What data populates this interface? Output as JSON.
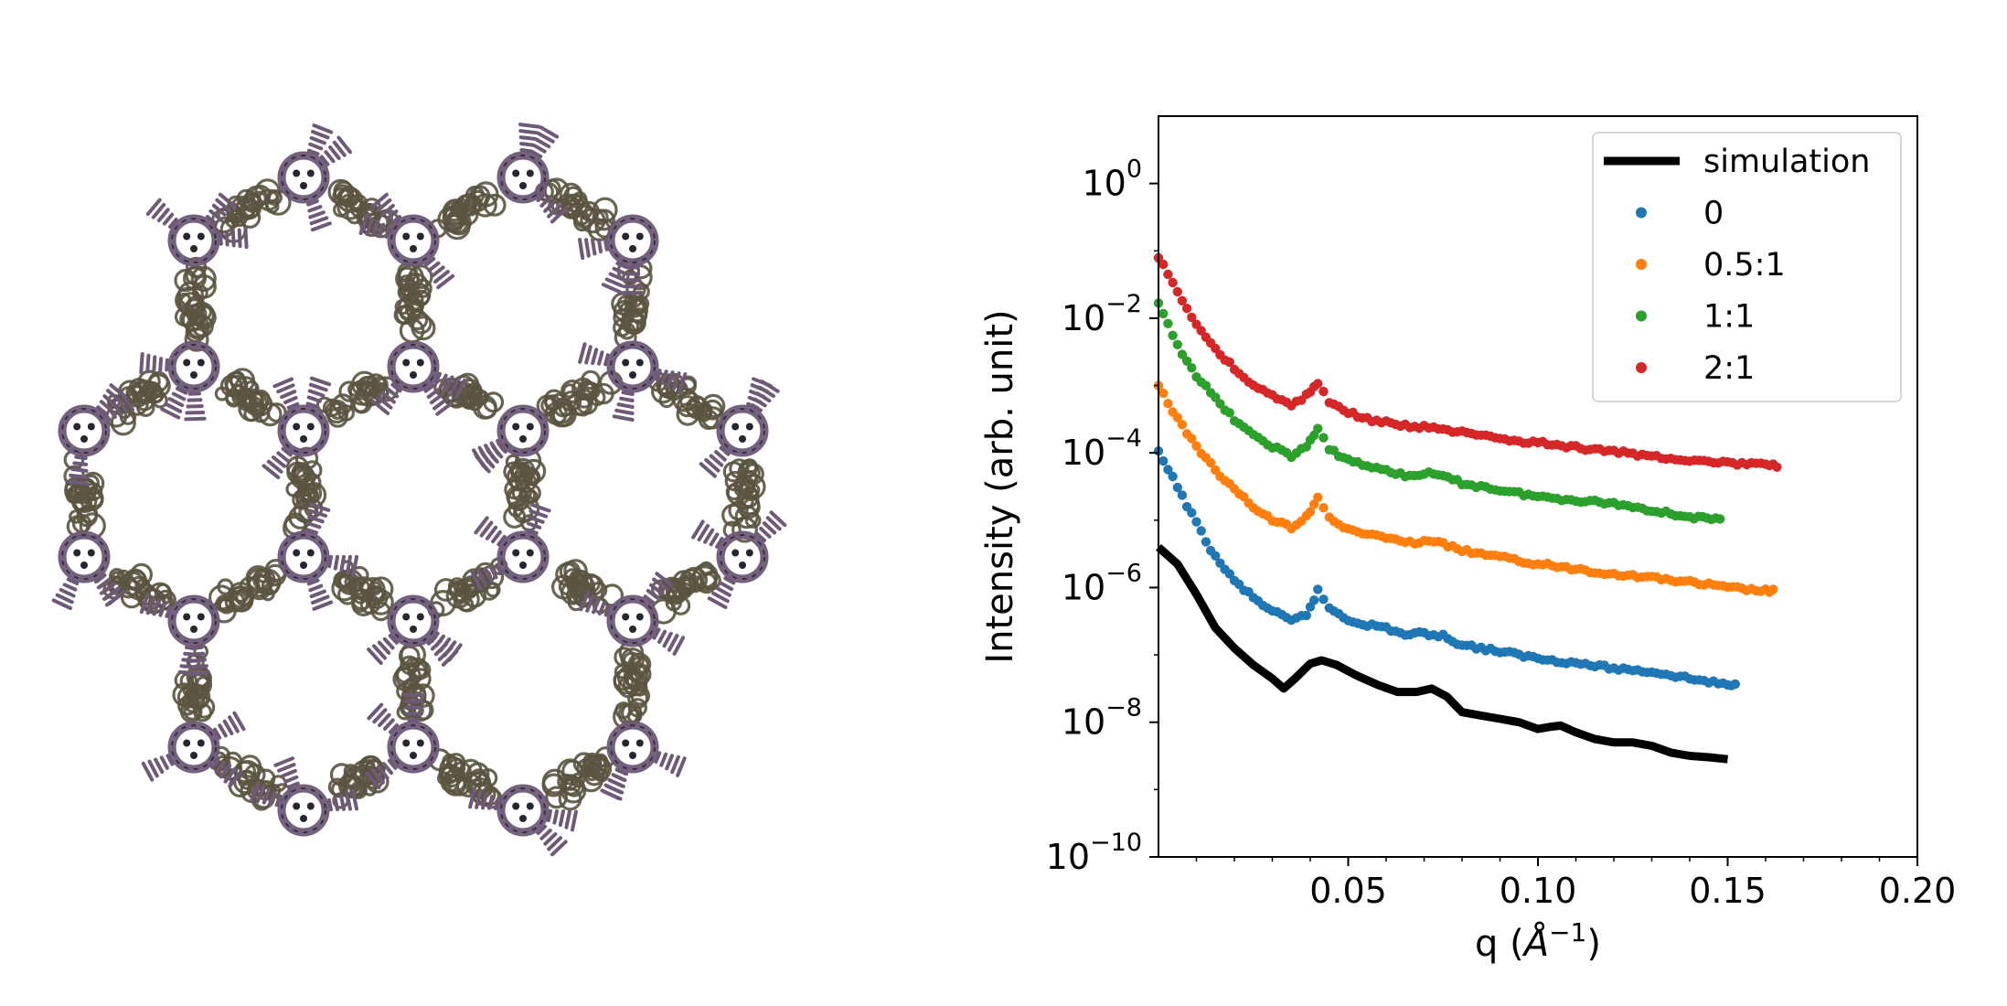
{
  "chart_data": {
    "type": "scatter",
    "xlabel_main": "q (",
    "xlabel_unit": "Å",
    "xlabel_sup": "−1",
    "xlabel_close": ")",
    "ylabel": "Intensity (arb. unit)",
    "xscale": "linear",
    "yscale": "log",
    "xlim": [
      0.0,
      0.2
    ],
    "ylim": [
      1e-10,
      10.0
    ],
    "grid": false,
    "legend_position": "top-right",
    "x_ticks": [
      {
        "value": 0.05,
        "label": "0.05"
      },
      {
        "value": 0.1,
        "label": "0.10"
      },
      {
        "value": 0.15,
        "label": "0.15"
      },
      {
        "value": 0.2,
        "label": "0.20"
      }
    ],
    "y_ticks": [
      {
        "exp": 0,
        "base": "10",
        "sup": "0"
      },
      {
        "exp": -2,
        "base": "10",
        "sup": "−2"
      },
      {
        "exp": -4,
        "base": "10",
        "sup": "−4"
      },
      {
        "exp": -6,
        "base": "10",
        "sup": "−6"
      },
      {
        "exp": -8,
        "base": "10",
        "sup": "−8"
      },
      {
        "exp": -10,
        "base": "10",
        "sup": "−10"
      }
    ],
    "series": [
      {
        "name": "simulation",
        "kind": "line",
        "color": "#000000",
        "points": [
          [
            0.0,
            -5.4
          ],
          [
            0.005,
            -5.65
          ],
          [
            0.01,
            -6.1
          ],
          [
            0.015,
            -6.6
          ],
          [
            0.02,
            -6.9
          ],
          [
            0.025,
            -7.15
          ],
          [
            0.03,
            -7.35
          ],
          [
            0.033,
            -7.5
          ],
          [
            0.036,
            -7.35
          ],
          [
            0.04,
            -7.13
          ],
          [
            0.043,
            -7.08
          ],
          [
            0.047,
            -7.15
          ],
          [
            0.052,
            -7.3
          ],
          [
            0.058,
            -7.45
          ],
          [
            0.063,
            -7.55
          ],
          [
            0.068,
            -7.55
          ],
          [
            0.072,
            -7.5
          ],
          [
            0.076,
            -7.62
          ],
          [
            0.08,
            -7.85
          ],
          [
            0.085,
            -7.9
          ],
          [
            0.09,
            -7.95
          ],
          [
            0.095,
            -8.0
          ],
          [
            0.1,
            -8.1
          ],
          [
            0.103,
            -8.07
          ],
          [
            0.106,
            -8.05
          ],
          [
            0.11,
            -8.15
          ],
          [
            0.115,
            -8.25
          ],
          [
            0.12,
            -8.3
          ],
          [
            0.125,
            -8.3
          ],
          [
            0.13,
            -8.35
          ],
          [
            0.135,
            -8.45
          ],
          [
            0.14,
            -8.5
          ],
          [
            0.145,
            -8.52
          ],
          [
            0.15,
            -8.55
          ]
        ]
      },
      {
        "name": "0",
        "kind": "scatter",
        "color": "#1f77b4",
        "points": [
          [
            0.0,
            -4.0
          ],
          [
            0.005,
            -4.5
          ],
          [
            0.01,
            -5.05
          ],
          [
            0.015,
            -5.55
          ],
          [
            0.02,
            -5.9
          ],
          [
            0.025,
            -6.15
          ],
          [
            0.03,
            -6.35
          ],
          [
            0.035,
            -6.5
          ],
          [
            0.039,
            -6.4
          ],
          [
            0.042,
            -6.05
          ],
          [
            0.045,
            -6.3
          ],
          [
            0.05,
            -6.48
          ],
          [
            0.055,
            -6.55
          ],
          [
            0.06,
            -6.6
          ],
          [
            0.065,
            -6.7
          ],
          [
            0.07,
            -6.68
          ],
          [
            0.075,
            -6.72
          ],
          [
            0.08,
            -6.85
          ],
          [
            0.09,
            -6.95
          ],
          [
            0.1,
            -7.05
          ],
          [
            0.11,
            -7.12
          ],
          [
            0.12,
            -7.2
          ],
          [
            0.13,
            -7.25
          ],
          [
            0.14,
            -7.35
          ],
          [
            0.15,
            -7.45
          ],
          [
            0.152,
            -7.45
          ]
        ]
      },
      {
        "name": "0.5:1",
        "kind": "scatter",
        "color": "#ff7f0e",
        "points": [
          [
            0.0,
            -3.0
          ],
          [
            0.005,
            -3.5
          ],
          [
            0.01,
            -3.9
          ],
          [
            0.015,
            -4.25
          ],
          [
            0.02,
            -4.55
          ],
          [
            0.025,
            -4.8
          ],
          [
            0.03,
            -5.0
          ],
          [
            0.035,
            -5.1
          ],
          [
            0.039,
            -4.95
          ],
          [
            0.042,
            -4.65
          ],
          [
            0.045,
            -4.95
          ],
          [
            0.05,
            -5.15
          ],
          [
            0.055,
            -5.2
          ],
          [
            0.06,
            -5.25
          ],
          [
            0.065,
            -5.35
          ],
          [
            0.07,
            -5.3
          ],
          [
            0.075,
            -5.35
          ],
          [
            0.08,
            -5.45
          ],
          [
            0.09,
            -5.55
          ],
          [
            0.1,
            -5.65
          ],
          [
            0.11,
            -5.72
          ],
          [
            0.12,
            -5.8
          ],
          [
            0.13,
            -5.85
          ],
          [
            0.14,
            -5.92
          ],
          [
            0.15,
            -6.0
          ],
          [
            0.16,
            -6.05
          ],
          [
            0.162,
            -6.05
          ]
        ]
      },
      {
        "name": "1:1",
        "kind": "scatter",
        "color": "#2ca02c",
        "points": [
          [
            0.0,
            -1.8
          ],
          [
            0.005,
            -2.4
          ],
          [
            0.01,
            -2.85
          ],
          [
            0.015,
            -3.2
          ],
          [
            0.02,
            -3.5
          ],
          [
            0.025,
            -3.75
          ],
          [
            0.03,
            -3.9
          ],
          [
            0.035,
            -4.05
          ],
          [
            0.039,
            -3.9
          ],
          [
            0.042,
            -3.65
          ],
          [
            0.045,
            -3.95
          ],
          [
            0.05,
            -4.1
          ],
          [
            0.055,
            -4.2
          ],
          [
            0.06,
            -4.25
          ],
          [
            0.065,
            -4.35
          ],
          [
            0.07,
            -4.3
          ],
          [
            0.075,
            -4.35
          ],
          [
            0.08,
            -4.45
          ],
          [
            0.09,
            -4.55
          ],
          [
            0.1,
            -4.65
          ],
          [
            0.11,
            -4.7
          ],
          [
            0.12,
            -4.75
          ],
          [
            0.13,
            -4.85
          ],
          [
            0.14,
            -4.95
          ],
          [
            0.148,
            -5.0
          ]
        ]
      },
      {
        "name": "2:1",
        "kind": "scatter",
        "color": "#d62728",
        "points": [
          [
            0.0,
            -1.1
          ],
          [
            0.005,
            -1.6
          ],
          [
            0.01,
            -2.1
          ],
          [
            0.015,
            -2.45
          ],
          [
            0.02,
            -2.75
          ],
          [
            0.025,
            -3.0
          ],
          [
            0.03,
            -3.15
          ],
          [
            0.035,
            -3.3
          ],
          [
            0.039,
            -3.15
          ],
          [
            0.042,
            -2.95
          ],
          [
            0.045,
            -3.25
          ],
          [
            0.05,
            -3.4
          ],
          [
            0.055,
            -3.5
          ],
          [
            0.06,
            -3.55
          ],
          [
            0.065,
            -3.6
          ],
          [
            0.07,
            -3.62
          ],
          [
            0.075,
            -3.65
          ],
          [
            0.08,
            -3.7
          ],
          [
            0.09,
            -3.8
          ],
          [
            0.1,
            -3.85
          ],
          [
            0.11,
            -3.92
          ],
          [
            0.12,
            -3.98
          ],
          [
            0.13,
            -4.05
          ],
          [
            0.14,
            -4.1
          ],
          [
            0.15,
            -4.15
          ],
          [
            0.16,
            -4.18
          ],
          [
            0.163,
            -4.2
          ]
        ]
      }
    ]
  },
  "illustration": {
    "description": "protein-lattice-render",
    "colors": {
      "trimer": "#6e5a78",
      "linker": "#5a5440",
      "hole": "#ffffff"
    }
  }
}
